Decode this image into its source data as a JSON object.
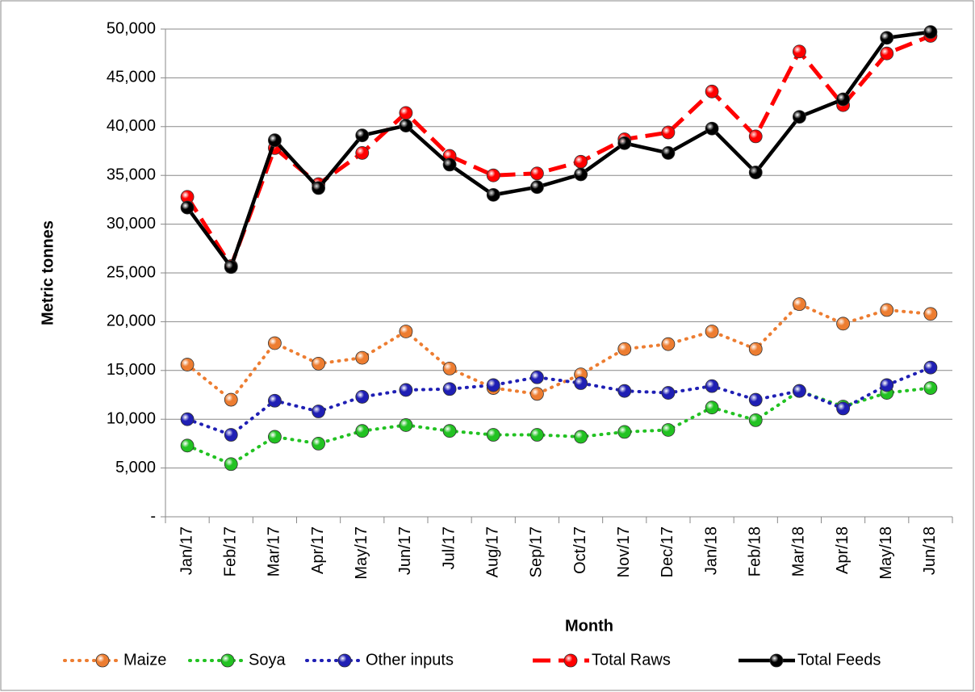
{
  "chart_data": {
    "type": "line",
    "x_label": "Month",
    "y_label": "Metric tonnes",
    "categories": [
      "Jan/17",
      "Feb/17",
      "Mar/17",
      "Apr/17",
      "May/17",
      "Jun/17",
      "Jul/17",
      "Aug/17",
      "Sep/17",
      "Oct/17",
      "Nov/17",
      "Dec/17",
      "Jan/18",
      "Feb/18",
      "Mar/18",
      "Apr/18",
      "May/18",
      "Jun/18"
    ],
    "series": [
      {
        "name": "Maize",
        "color": "#ed7d31",
        "style": "dotted",
        "values": [
          15600,
          12000,
          17800,
          15700,
          16300,
          19000,
          15200,
          13200,
          12600,
          14600,
          17200,
          17700,
          19000,
          17200,
          21800,
          19800,
          21200,
          20800
        ]
      },
      {
        "name": "Soya",
        "color": "#22c222",
        "style": "dotted",
        "values": [
          7300,
          5400,
          8200,
          7500,
          8800,
          9400,
          8800,
          8400,
          8400,
          8200,
          8700,
          8900,
          11200,
          9900,
          12900,
          11300,
          12700,
          13200
        ]
      },
      {
        "name": "Other inputs",
        "color": "#1f1fb4",
        "style": "dotted",
        "values": [
          10000,
          8400,
          11900,
          10800,
          12300,
          13000,
          13100,
          13500,
          14300,
          13700,
          12900,
          12700,
          13400,
          12000,
          12900,
          11100,
          13500,
          15300
        ]
      },
      {
        "name": "Total Raws",
        "color": "#ff0000",
        "style": "dashed",
        "values": [
          32800,
          25700,
          37800,
          34100,
          37300,
          41400,
          37000,
          35000,
          35200,
          36400,
          38700,
          39400,
          43600,
          39000,
          47700,
          42200,
          47500,
          49300
        ]
      },
      {
        "name": "Total Feeds",
        "color": "#000000",
        "style": "solid",
        "values": [
          31700,
          25600,
          38600,
          33700,
          39100,
          40100,
          36100,
          33000,
          33800,
          35100,
          38300,
          37300,
          39800,
          35300,
          41000,
          42800,
          49100,
          49700
        ]
      }
    ],
    "ylim": [
      0,
      50000
    ],
    "yticks": [
      {
        "value": 0,
        "label": "-"
      },
      {
        "value": 5000,
        "label": "5,000"
      },
      {
        "value": 10000,
        "label": "10,000"
      },
      {
        "value": 15000,
        "label": "15,000"
      },
      {
        "value": 20000,
        "label": "20,000"
      },
      {
        "value": 25000,
        "label": "25,000"
      },
      {
        "value": 30000,
        "label": "30,000"
      },
      {
        "value": 35000,
        "label": "35,000"
      },
      {
        "value": 40000,
        "label": "40,000"
      },
      {
        "value": 45000,
        "label": "45,000"
      },
      {
        "value": 50000,
        "label": "50,000"
      }
    ],
    "grid": true,
    "legend": "bottom"
  }
}
